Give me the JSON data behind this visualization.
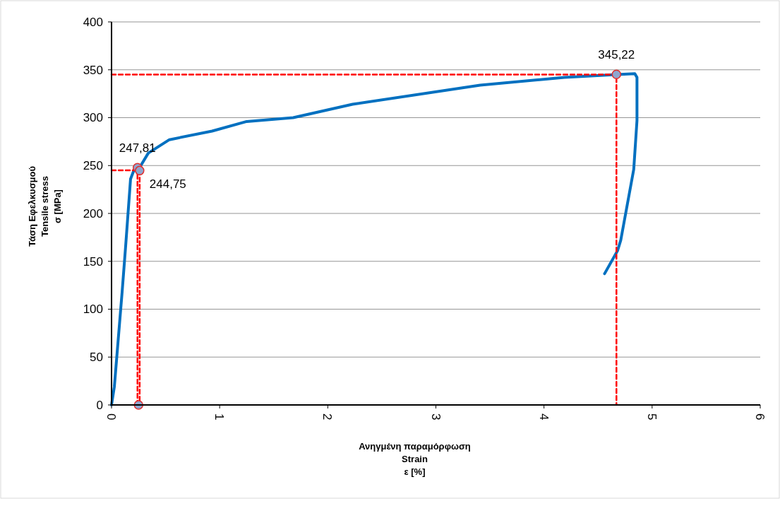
{
  "chart_data": {
    "type": "line",
    "xlabel": "Ανηγμένη παραμόρφωση\nStrain\nε [%]",
    "ylabel": "Τάση Εφελκυσμού\nTensile stress\nσ [MPa]",
    "xlim": [
      0,
      6
    ],
    "xticks": [
      0,
      1,
      2,
      3,
      4,
      5,
      6
    ],
    "ylim": [
      0,
      400
    ],
    "yticks": [
      0,
      50,
      100,
      150,
      200,
      250,
      300,
      350,
      400
    ],
    "grid": "y",
    "series": [
      {
        "color": "#0070c0",
        "marker": "none",
        "line_style": "solid",
        "x": [
          0,
          0.026,
          0.098,
          0.13,
          0.176,
          0.21,
          0.26,
          0.34,
          0.535,
          0.93,
          1.25,
          1.68,
          2.23,
          3.41,
          4.19,
          4.67,
          4.84,
          4.86,
          4.86,
          4.83,
          4.71,
          4.68,
          4.56
        ],
        "values": [
          0,
          19,
          118,
          165,
          236,
          246,
          248,
          263,
          277,
          286,
          296,
          300,
          314,
          334,
          342,
          345,
          346,
          342,
          297,
          246,
          172,
          161,
          137
        ]
      },
      {
        "type": "line",
        "color": "#ff0000",
        "marker": "none",
        "line_style": "dashed",
        "x": [
          0,
          4.67,
          4.67
        ],
        "values": [
          345,
          345,
          0
        ]
      },
      {
        "type": "line",
        "color": "#ff0000",
        "marker": "none",
        "line_style": "dashed",
        "x": [
          0,
          0.26,
          0.26
        ],
        "values": [
          245,
          245,
          0
        ]
      },
      {
        "type": "line",
        "color": "#ff0000",
        "marker": "none",
        "line_style": "dashed",
        "x": [
          0.24,
          0.24
        ],
        "values": [
          248,
          0
        ]
      },
      {
        "type": "scatter",
        "color": "#8fa6cf",
        "marker": "circle",
        "x": [
          0.24,
          0.26,
          4.67,
          0.25
        ],
        "values": [
          247.81,
          244.75,
          345.22,
          0
        ],
        "value_labels": [
          "247,81",
          "244,75",
          "345,22",
          null
        ]
      }
    ]
  }
}
